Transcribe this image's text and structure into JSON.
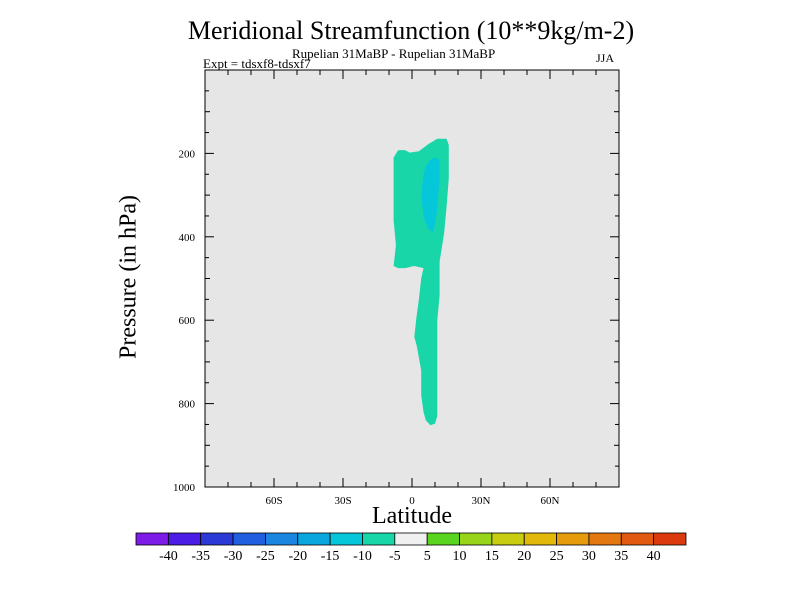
{
  "chart_data": {
    "type": "contour",
    "title": "Meridional Streamfunction (10**9kg/m-2)",
    "subtitle": "Rupelian  31MaBP - Rupelian  31MaBP",
    "experiment": "Expt = tdsxf8-tdsxf7",
    "season": "JJA",
    "xlabel": "Latitude",
    "ylabel": "Pressure (in hPa)",
    "xlim": [
      -90,
      90
    ],
    "ylim": [
      1000,
      0
    ],
    "x_ticks": [
      {
        "value": -60,
        "label": "60S"
      },
      {
        "value": -30,
        "label": "30S"
      },
      {
        "value": 0,
        "label": "0"
      },
      {
        "value": 30,
        "label": "30N"
      },
      {
        "value": 60,
        "label": "60N"
      }
    ],
    "y_ticks": [
      {
        "value": 200,
        "label": "200"
      },
      {
        "value": 400,
        "label": "400"
      },
      {
        "value": 600,
        "label": "600"
      },
      {
        "value": 800,
        "label": "800"
      },
      {
        "value": 1000,
        "label": "1000"
      }
    ],
    "background_color": "#e6e6e6",
    "contour_regions": [
      {
        "level": "-10 to -5",
        "color": "#19d6a8",
        "outline_lat_p": [
          [
            -8,
            470
          ],
          [
            -7,
            420
          ],
          [
            -8,
            360
          ],
          [
            -8,
            280
          ],
          [
            -8,
            210
          ],
          [
            -6,
            192
          ],
          [
            -3,
            192
          ],
          [
            -1,
            198
          ],
          [
            3,
            195
          ],
          [
            7,
            178
          ],
          [
            11,
            165
          ],
          [
            15,
            165
          ],
          [
            16,
            180
          ],
          [
            16,
            260
          ],
          [
            15,
            330
          ],
          [
            14,
            390
          ],
          [
            12,
            460
          ],
          [
            12,
            540
          ],
          [
            11,
            600
          ],
          [
            11,
            700
          ],
          [
            11,
            780
          ],
          [
            11,
            830
          ],
          [
            10,
            848
          ],
          [
            8,
            852
          ],
          [
            6,
            840
          ],
          [
            5,
            820
          ],
          [
            4,
            780
          ],
          [
            4,
            720
          ],
          [
            2,
            660
          ],
          [
            1,
            640
          ],
          [
            2,
            590
          ],
          [
            3,
            550
          ],
          [
            4,
            500
          ],
          [
            5,
            475
          ],
          [
            1,
            470
          ],
          [
            -3,
            475
          ],
          [
            -6,
            475
          ]
        ]
      },
      {
        "level": "-15 to -10",
        "color": "#06c6da",
        "outline_lat_p": [
          [
            5,
            250
          ],
          [
            6,
            230
          ],
          [
            8,
            215
          ],
          [
            10,
            210
          ],
          [
            12,
            215
          ],
          [
            12,
            260
          ],
          [
            11,
            330
          ],
          [
            10,
            370
          ],
          [
            9,
            390
          ],
          [
            7,
            380
          ],
          [
            5,
            350
          ],
          [
            4,
            300
          ]
        ]
      }
    ],
    "colorbar": {
      "labels": [
        "-40",
        "-35",
        "-30",
        "-25",
        "-20",
        "-15",
        "-10",
        "-5",
        "5",
        "10",
        "15",
        "20",
        "25",
        "30",
        "35",
        "40"
      ],
      "colors": [
        "#7d1ce6",
        "#4a1ce6",
        "#2b3ad6",
        "#1f5fe0",
        "#1a86e0",
        "#0aa6de",
        "#06c6da",
        "#19d6a8",
        "#f0f0f0",
        "#5ad51f",
        "#98d51a",
        "#c8cd12",
        "#e2b90a",
        "#e59b0c",
        "#e47810",
        "#e25a12",
        "#dc3a0e"
      ]
    }
  }
}
